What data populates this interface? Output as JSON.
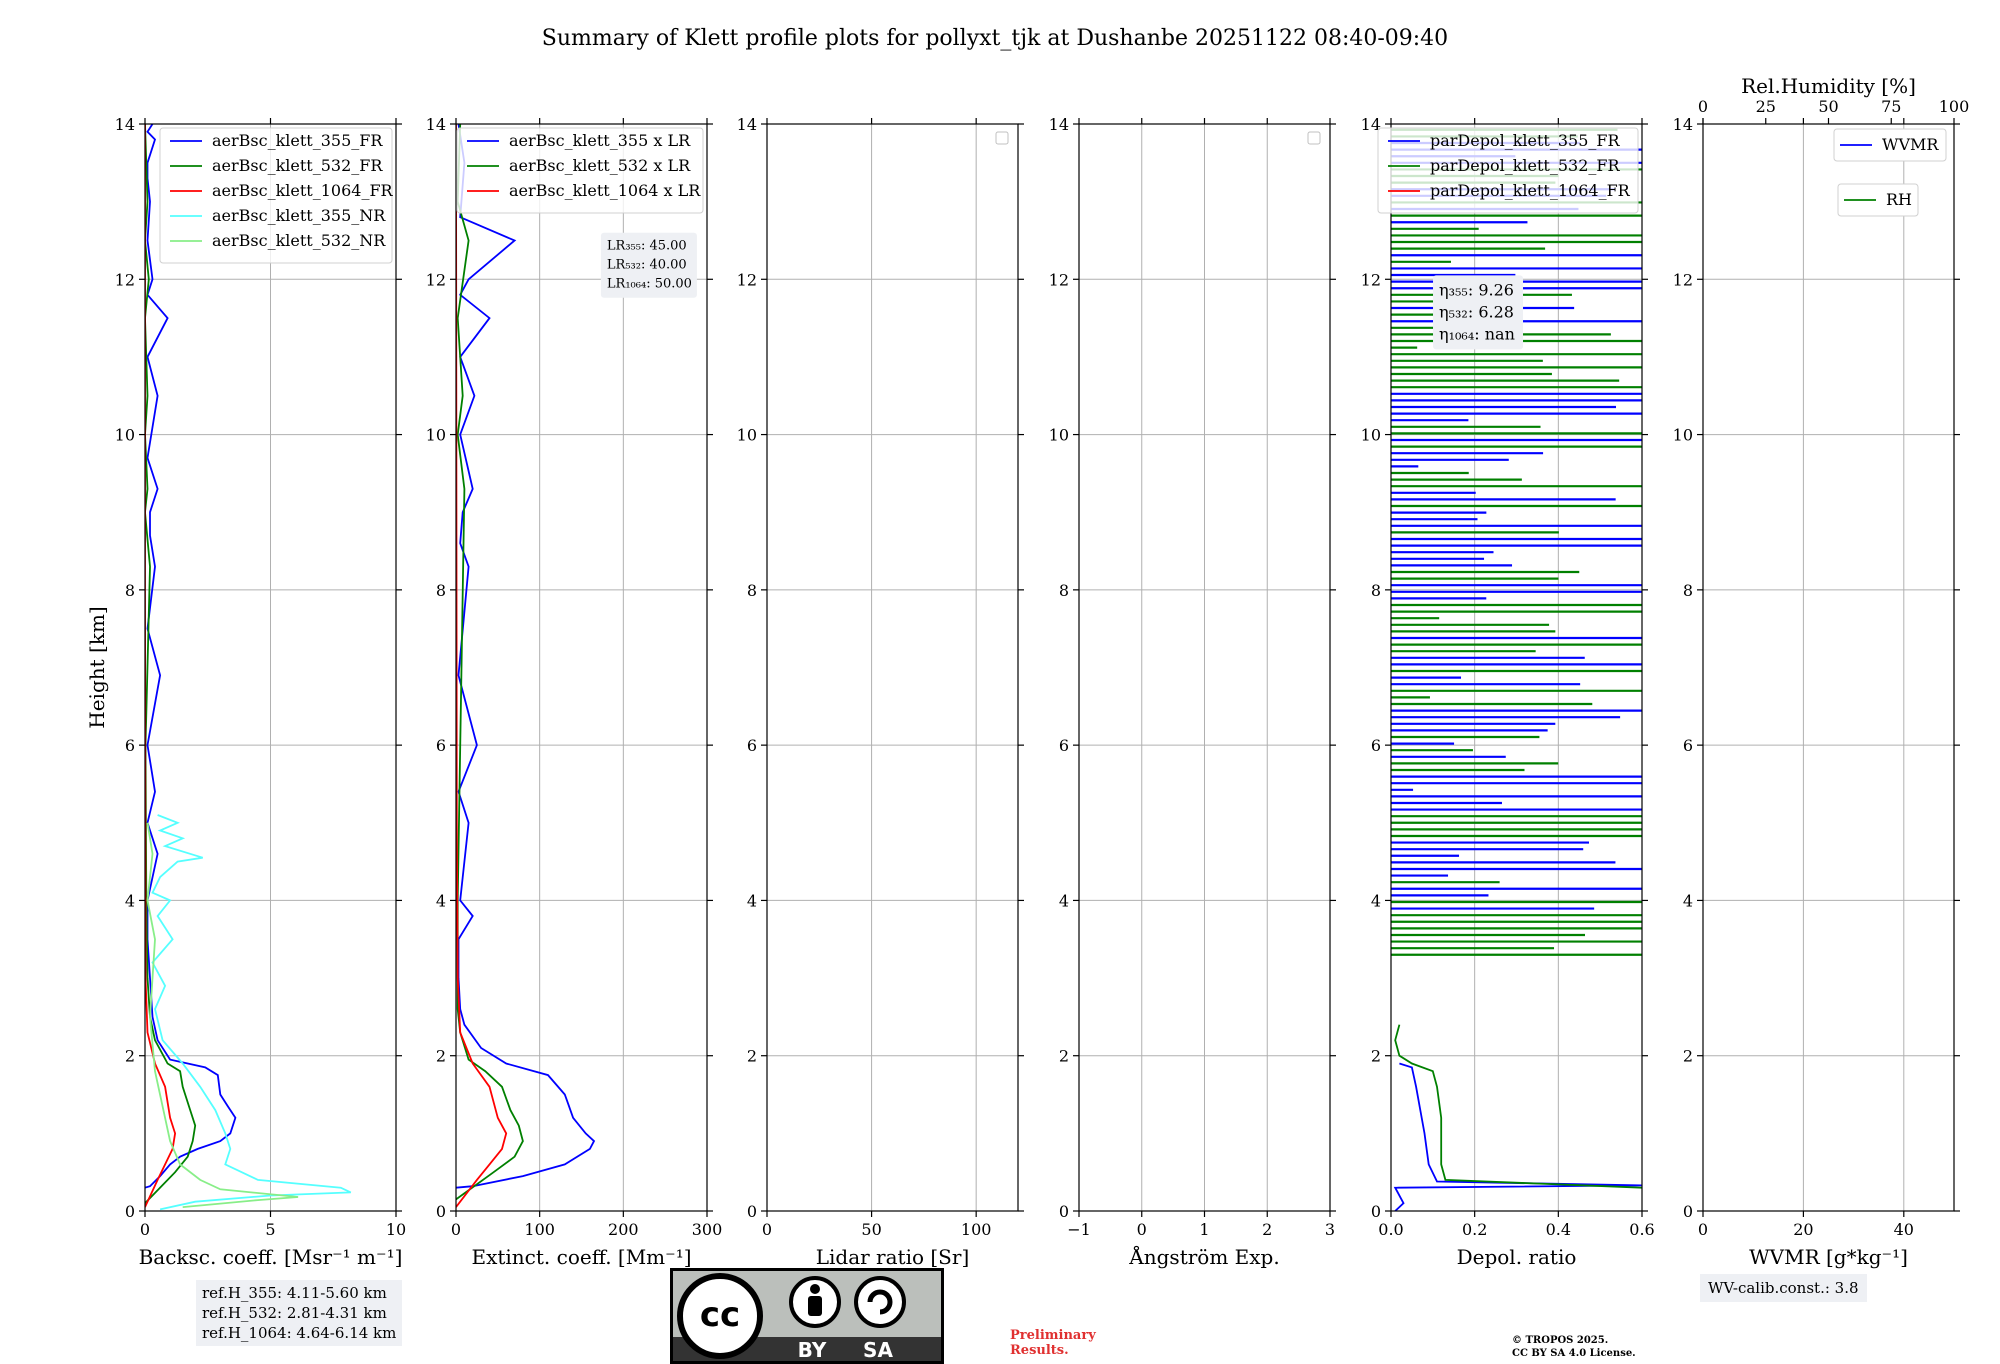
{
  "title": "Summary of Klett profile plots for pollyxt_tjk at Dushanbe 20251122 08:40-09:40",
  "colors": {
    "c355": "#0000ff",
    "c532": "#008000",
    "c1064": "#ff0000",
    "c355nr": "#55ffff",
    "c532nr": "#88ee88",
    "grid": "#b0b0b0"
  },
  "chart_data": [
    {
      "id": "backscatter",
      "type": "line",
      "xlabel": "Backsc. coeff. [Msr⁻¹ m⁻¹]",
      "ylabel": "Height [km]",
      "xlim": [
        0,
        10
      ],
      "ylim": [
        0,
        14
      ],
      "xticks": [
        0,
        5,
        10
      ],
      "yticks": [
        0,
        2,
        4,
        6,
        8,
        10,
        12,
        14
      ],
      "legend": [
        "aerBsc_klett_355_FR",
        "aerBsc_klett_532_FR",
        "aerBsc_klett_1064_FR",
        "aerBsc_klett_355_NR",
        "aerBsc_klett_532_NR"
      ],
      "series": [
        {
          "name": "aerBsc_klett_355_FR",
          "color": "#0000ff",
          "x": [
            0.0,
            0.2,
            0.6,
            1.0,
            1.4,
            2.1,
            3.0,
            3.4,
            3.6,
            3.3,
            3.0,
            2.9,
            2.4,
            1.0,
            0.5,
            0.3,
            0.2,
            0.1,
            0.1,
            0.5,
            0.1,
            0.4,
            0.1,
            0.6,
            0.1,
            0.4,
            0.2,
            0.2,
            0.5,
            0.1,
            0.5,
            0.1,
            0.9,
            0.1,
            0.3,
            0.1,
            0.2,
            0.1,
            0.1,
            0.4,
            0.1,
            0.3
          ],
          "y": [
            0.3,
            0.32,
            0.45,
            0.6,
            0.7,
            0.8,
            0.9,
            1.0,
            1.2,
            1.35,
            1.5,
            1.75,
            1.85,
            1.95,
            2.2,
            2.5,
            3.0,
            3.5,
            4.0,
            4.6,
            5.0,
            5.4,
            6.0,
            6.9,
            7.5,
            8.3,
            8.7,
            9.0,
            9.3,
            9.7,
            10.5,
            11.0,
            11.5,
            11.8,
            12.0,
            12.5,
            13.0,
            13.3,
            13.5,
            13.8,
            13.9,
            14.0
          ]
        },
        {
          "name": "aerBsc_klett_532_FR",
          "color": "#008000",
          "x": [
            0.0,
            1.2,
            1.7,
            1.9,
            2.0,
            1.8,
            1.5,
            1.4,
            0.9,
            0.4,
            0.2,
            0.1,
            0.05,
            0.02,
            0.2,
            0.0,
            0.1,
            0.0,
            0.1,
            0.0,
            0.15,
            0.0,
            0.1,
            0.0
          ],
          "y": [
            0.1,
            0.5,
            0.7,
            0.9,
            1.1,
            1.3,
            1.6,
            1.8,
            1.9,
            2.2,
            2.5,
            3.0,
            4.0,
            6.0,
            8.3,
            9.0,
            9.3,
            10.0,
            10.5,
            11.5,
            12.0,
            12.5,
            13.0,
            14.0
          ]
        },
        {
          "name": "aerBsc_klett_1064_FR",
          "color": "#ff0000",
          "x": [
            0.0,
            0.5,
            0.8,
            1.1,
            1.2,
            1.0,
            0.8,
            0.4,
            0.1,
            0.02,
            0.01,
            0.0,
            0.0
          ],
          "y": [
            0.05,
            0.4,
            0.6,
            0.8,
            1.0,
            1.2,
            1.6,
            1.9,
            2.3,
            3.0,
            5.0,
            8.0,
            14.0
          ]
        },
        {
          "name": "aerBsc_klett_355_NR",
          "color": "#55ffff",
          "x": [
            0.6,
            2.0,
            5.0,
            8.2,
            7.8,
            4.5,
            3.2,
            3.4,
            3.2,
            2.8,
            2.2,
            1.5,
            0.7,
            0.4,
            0.8,
            0.3,
            1.1,
            0.5,
            1.0,
            0.3,
            0.6,
            1.3,
            2.3,
            0.8,
            1.5,
            0.6,
            1.3,
            0.5
          ],
          "y": [
            0.02,
            0.12,
            0.2,
            0.24,
            0.3,
            0.4,
            0.6,
            0.8,
            1.0,
            1.3,
            1.6,
            1.9,
            2.2,
            2.6,
            2.9,
            3.2,
            3.5,
            3.8,
            4.0,
            4.1,
            4.3,
            4.5,
            4.55,
            4.7,
            4.8,
            4.9,
            5.0,
            5.1
          ]
        },
        {
          "name": "aerBsc_klett_532_NR",
          "color": "#88ee88",
          "x": [
            1.5,
            4.5,
            6.1,
            3.0,
            2.2,
            1.4,
            1.0,
            0.4,
            0.2,
            0.4,
            0.1,
            0.3,
            0.1
          ],
          "y": [
            0.05,
            0.14,
            0.18,
            0.28,
            0.4,
            0.6,
            0.9,
            1.8,
            2.5,
            3.5,
            4.0,
            4.6,
            5.0
          ]
        }
      ],
      "legend_position": "top-right"
    },
    {
      "id": "extinction",
      "type": "line",
      "xlabel": "Extinct. coeff. [Mm⁻¹]",
      "ylabel": "",
      "xlim": [
        0,
        300
      ],
      "ylim": [
        0,
        14
      ],
      "xticks": [
        0,
        100,
        200,
        300
      ],
      "yticks": [
        0,
        2,
        4,
        6,
        8,
        10,
        12,
        14
      ],
      "legend": [
        "aerBsc_klett_355 x LR",
        "aerBsc_klett_532 x LR",
        "aerBsc_klett_1064 x LR"
      ],
      "series": [
        {
          "name": "aerBsc_klett_355 x LR",
          "color": "#0000ff",
          "x": [
            0,
            20,
            80,
            130,
            160,
            165,
            155,
            140,
            135,
            130,
            110,
            60,
            30,
            10,
            5,
            3,
            3,
            20,
            5,
            15,
            3,
            25,
            3,
            15,
            5,
            8,
            20,
            5,
            22,
            5,
            40,
            5,
            15,
            70,
            5,
            10,
            3
          ],
          "y": [
            0.3,
            0.32,
            0.45,
            0.6,
            0.8,
            0.9,
            1.0,
            1.2,
            1.35,
            1.5,
            1.75,
            1.9,
            2.1,
            2.4,
            2.6,
            3.0,
            3.5,
            3.8,
            4.0,
            5.0,
            5.4,
            6.0,
            6.9,
            8.3,
            8.6,
            9.0,
            9.3,
            10.0,
            10.5,
            11.0,
            11.5,
            11.8,
            12.0,
            12.5,
            12.8,
            13.5,
            14.0
          ]
        },
        {
          "name": "aerBsc_klett_532 x LR",
          "color": "#008000",
          "x": [
            0,
            45,
            70,
            80,
            75,
            65,
            55,
            35,
            15,
            5,
            2,
            2,
            10,
            2,
            8,
            2,
            15,
            2,
            5
          ],
          "y": [
            0.15,
            0.5,
            0.7,
            0.9,
            1.1,
            1.3,
            1.6,
            1.8,
            1.95,
            2.3,
            2.6,
            4.0,
            9.3,
            10.0,
            10.5,
            11.5,
            12.5,
            13.0,
            14.0
          ]
        },
        {
          "name": "aerBsc_klett_1064 x LR",
          "color": "#ff0000",
          "x": [
            0,
            25,
            40,
            55,
            60,
            50,
            40,
            20,
            5,
            2,
            1,
            0
          ],
          "y": [
            0.05,
            0.4,
            0.6,
            0.8,
            1.0,
            1.2,
            1.6,
            1.9,
            2.3,
            3.0,
            5.0,
            14.0
          ]
        }
      ],
      "annotations": [
        "LR₃₅₅: 45.00",
        "LR₅₃₂: 40.00",
        "LR₁₀₆₄: 50.00"
      ],
      "legend_position": "top-right"
    },
    {
      "id": "lidar_ratio",
      "type": "line",
      "xlabel": "Lidar ratio [Sr]",
      "ylabel": "",
      "xlim": [
        0,
        120
      ],
      "ylim": [
        0,
        14
      ],
      "xticks": [
        0,
        50,
        100
      ],
      "yticks": [
        0,
        2,
        4,
        6,
        8,
        10,
        12,
        14
      ],
      "series": [],
      "legend_position": "top-right"
    },
    {
      "id": "angstrom",
      "type": "line",
      "xlabel": "Ångström Exp.",
      "ylabel": "",
      "xlim": [
        -1,
        3
      ],
      "ylim": [
        0,
        14
      ],
      "xticks": [
        -1,
        0,
        1,
        2,
        3
      ],
      "yticks": [
        0,
        2,
        4,
        6,
        8,
        10,
        12,
        14
      ],
      "series": [],
      "legend_position": "top-right"
    },
    {
      "id": "depol",
      "type": "line",
      "xlabel": "Depol. ratio",
      "ylabel": "",
      "xlim": [
        0,
        0.6
      ],
      "ylim": [
        0,
        14
      ],
      "xticks": [
        0.0,
        0.2,
        0.4,
        0.6
      ],
      "yticks": [
        0,
        2,
        4,
        6,
        8,
        10,
        12,
        14
      ],
      "legend": [
        "parDepol_klett_355_FR",
        "parDepol_klett_532_FR",
        "parDepol_klett_1064_FR"
      ],
      "series": [
        {
          "name": "parDepol_klett_355_FR",
          "color": "#0000ff",
          "x": [
            0.01,
            0.03,
            0.01,
            0.6,
            0.11,
            0.09,
            0.08,
            0.07,
            0.06,
            0.05,
            0.02
          ],
          "y": [
            0.0,
            0.1,
            0.3,
            0.33,
            0.38,
            0.6,
            1.0,
            1.3,
            1.6,
            1.85,
            1.9
          ]
        },
        {
          "name": "parDepol_klett_532_FR",
          "color": "#008000",
          "x": [
            0.6,
            0.13,
            0.12,
            0.12,
            0.11,
            0.1,
            0.05,
            0.02,
            0.01,
            0.02
          ],
          "y": [
            0.3,
            0.4,
            0.6,
            1.2,
            1.6,
            1.8,
            1.9,
            2.0,
            2.2,
            2.4
          ]
        }
      ],
      "noise_start_km": 3.3,
      "annotations": [
        "η₃₅₅: 9.26",
        "η₅₃₂: 6.28",
        "η₁₀₆₄: nan"
      ],
      "legend_position": "top-right"
    },
    {
      "id": "wvmr",
      "type": "line",
      "xlabel": "WVMR [g*kg⁻¹]",
      "ylabel": "",
      "xlim": [
        0,
        50
      ],
      "ylim": [
        0,
        14
      ],
      "xticks": [
        0,
        20,
        40
      ],
      "yticks": [
        0,
        2,
        4,
        6,
        8,
        10,
        12,
        14
      ],
      "top_xlabel": "Rel.Humidity [%]",
      "top_xlim": [
        0,
        100
      ],
      "top_xticks": [
        0,
        25,
        50,
        75,
        100
      ],
      "legend": [
        "WVMR",
        "RH"
      ],
      "series": [],
      "legend_position": "top-right"
    }
  ],
  "ref_heights": [
    "ref.H_355: 4.11-5.60 km",
    "ref.H_532: 2.81-4.31 km",
    "ref.H_1064: 4.64-6.14 km"
  ],
  "wv_calib": "WV-calib.const.: 3.8",
  "license": {
    "cc": "cc",
    "by": "BY",
    "sa": "SA"
  },
  "preliminary": [
    "Preliminary",
    "Results."
  ],
  "copyright": [
    "© TROPOS 2025.",
    "CC BY SA 4.0 License."
  ]
}
